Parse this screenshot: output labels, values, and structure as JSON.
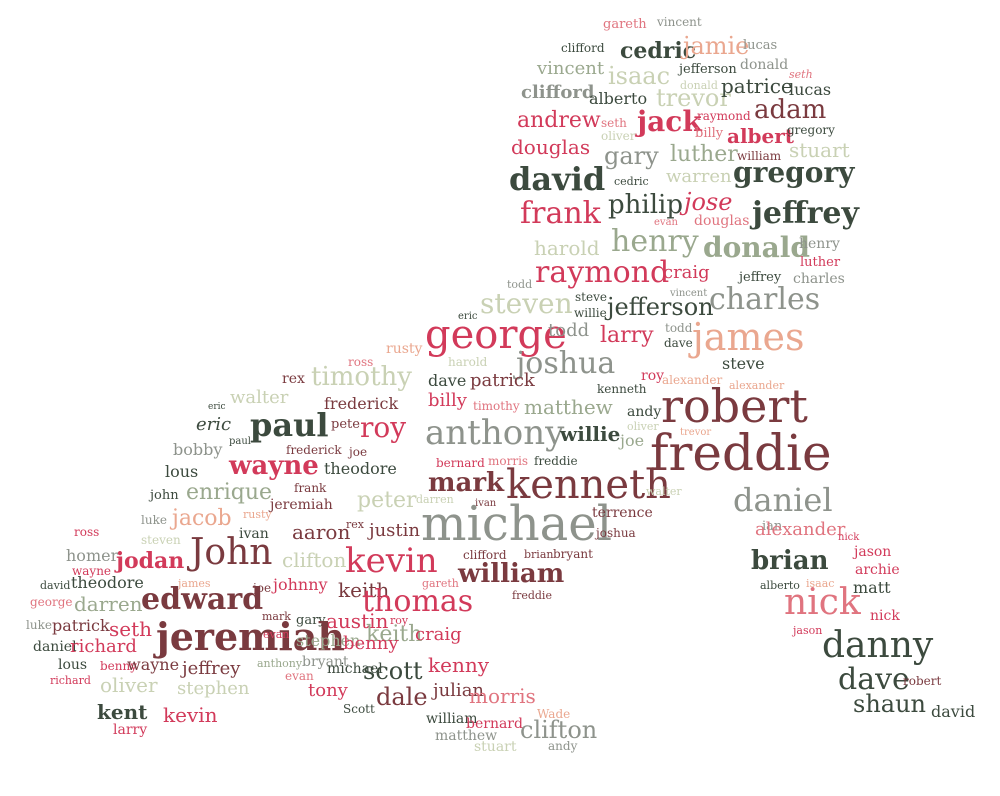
{
  "palette": {
    "dark_green": "#3c4a3e",
    "maroon": "#7a3a3f",
    "crimson": "#d23a5a",
    "rose": "#e0747f",
    "peach": "#eaa78f",
    "sage": "#9aa88e",
    "pale_sage": "#c9d1b4",
    "grey": "#8e938c"
  },
  "words": [
    {
      "text": "gareth",
      "color": "rose"
    },
    {
      "text": "vincent",
      "color": "grey"
    },
    {
      "text": "clifford",
      "color": "dark_green"
    },
    {
      "text": "cedric",
      "color": "dark_green"
    },
    {
      "text": "jamie",
      "color": "peach"
    },
    {
      "text": "lucas",
      "color": "grey"
    },
    {
      "text": "vincent",
      "color": "sage"
    },
    {
      "text": "isaac",
      "color": "pale_sage"
    },
    {
      "text": "jefferson",
      "color": "dark_green"
    },
    {
      "text": "donald",
      "color": "grey"
    },
    {
      "text": "clifford",
      "color": "grey"
    },
    {
      "text": "alberto",
      "color": "dark_green"
    },
    {
      "text": "trevor",
      "color": "pale_sage"
    },
    {
      "text": "donald",
      "color": "pale_sage"
    },
    {
      "text": "patrice",
      "color": "dark_green"
    },
    {
      "text": "seth",
      "color": "rose"
    },
    {
      "text": "lucas",
      "color": "dark_green"
    },
    {
      "text": "andrew",
      "color": "crimson"
    },
    {
      "text": "seth",
      "color": "rose"
    },
    {
      "text": "jack",
      "color": "crimson"
    },
    {
      "text": "raymond",
      "color": "crimson"
    },
    {
      "text": "adam",
      "color": "maroon"
    },
    {
      "text": "oliver",
      "color": "pale_sage"
    },
    {
      "text": "billy",
      "color": "rose"
    },
    {
      "text": "albert",
      "color": "crimson"
    },
    {
      "text": "gregory",
      "color": "dark_green"
    },
    {
      "text": "douglas",
      "color": "crimson"
    },
    {
      "text": "gary",
      "color": "grey"
    },
    {
      "text": "luther",
      "color": "sage"
    },
    {
      "text": "william",
      "color": "maroon"
    },
    {
      "text": "stuart",
      "color": "pale_sage"
    },
    {
      "text": "david",
      "color": "dark_green"
    },
    {
      "text": "cedric",
      "color": "dark_green"
    },
    {
      "text": "warren",
      "color": "pale_sage"
    },
    {
      "text": "gregory",
      "color": "dark_green"
    },
    {
      "text": "frank",
      "color": "crimson"
    },
    {
      "text": "philip",
      "color": "dark_green"
    },
    {
      "text": "jose",
      "color": "crimson"
    },
    {
      "text": "evan",
      "color": "rose"
    },
    {
      "text": "douglas",
      "color": "rose"
    },
    {
      "text": "jeffrey",
      "color": "dark_green"
    },
    {
      "text": "harold",
      "color": "pale_sage"
    },
    {
      "text": "henry",
      "color": "sage"
    },
    {
      "text": "donald",
      "color": "sage"
    },
    {
      "text": "henry",
      "color": "grey"
    },
    {
      "text": "luther",
      "color": "crimson"
    },
    {
      "text": "raymond",
      "color": "crimson"
    },
    {
      "text": "craig",
      "color": "crimson"
    },
    {
      "text": "jeffrey",
      "color": "dark_green"
    },
    {
      "text": "charles",
      "color": "grey"
    },
    {
      "text": "todd",
      "color": "grey"
    },
    {
      "text": "vincent",
      "color": "grey"
    },
    {
      "text": "steven",
      "color": "pale_sage"
    },
    {
      "text": "steve",
      "color": "dark_green"
    },
    {
      "text": "jefferson",
      "color": "dark_green"
    },
    {
      "text": "charles",
      "color": "grey"
    },
    {
      "text": "eric",
      "color": "dark_green"
    },
    {
      "text": "willie",
      "color": "dark_green"
    },
    {
      "text": "george",
      "color": "crimson"
    },
    {
      "text": "todd",
      "color": "grey"
    },
    {
      "text": "larry",
      "color": "crimson"
    },
    {
      "text": "todd",
      "color": "grey"
    },
    {
      "text": "dave",
      "color": "dark_green"
    },
    {
      "text": "james",
      "color": "peach"
    },
    {
      "text": "ross",
      "color": "rose"
    },
    {
      "text": "rusty",
      "color": "peach"
    },
    {
      "text": "harold",
      "color": "pale_sage"
    },
    {
      "text": "joshua",
      "color": "grey"
    },
    {
      "text": "steve",
      "color": "dark_green"
    },
    {
      "text": "rex",
      "color": "maroon"
    },
    {
      "text": "timothy",
      "color": "pale_sage"
    },
    {
      "text": "dave",
      "color": "dark_green"
    },
    {
      "text": "patrick",
      "color": "maroon"
    },
    {
      "text": "roy",
      "color": "crimson"
    },
    {
      "text": "alexander",
      "color": "peach"
    },
    {
      "text": "alexander",
      "color": "peach"
    },
    {
      "text": "walter",
      "color": "pale_sage"
    },
    {
      "text": "kenneth",
      "color": "dark_green"
    },
    {
      "text": "eric",
      "color": "dark_green"
    },
    {
      "text": "frederick",
      "color": "maroon"
    },
    {
      "text": "billy",
      "color": "crimson"
    },
    {
      "text": "timothy",
      "color": "rose"
    },
    {
      "text": "matthew",
      "color": "sage"
    },
    {
      "text": "andy",
      "color": "dark_green"
    },
    {
      "text": "robert",
      "color": "maroon"
    },
    {
      "text": "eric",
      "color": "dark_green"
    },
    {
      "text": "paul",
      "color": "dark_green"
    },
    {
      "text": "pete",
      "color": "maroon"
    },
    {
      "text": "roy",
      "color": "crimson"
    },
    {
      "text": "anthony",
      "color": "grey"
    },
    {
      "text": "willie",
      "color": "dark_green"
    },
    {
      "text": "oliver",
      "color": "pale_sage"
    },
    {
      "text": "trevor",
      "color": "peach"
    },
    {
      "text": "paul",
      "color": "dark_green"
    },
    {
      "text": "bobby",
      "color": "grey"
    },
    {
      "text": "frederick",
      "color": "maroon"
    },
    {
      "text": "joe",
      "color": "maroon"
    },
    {
      "text": "joe",
      "color": "sage"
    },
    {
      "text": "wayne",
      "color": "crimson"
    },
    {
      "text": "theodore",
      "color": "dark_green"
    },
    {
      "text": "bernard",
      "color": "crimson"
    },
    {
      "text": "morris",
      "color": "rose"
    },
    {
      "text": "freddie",
      "color": "dark_green"
    },
    {
      "text": "freddie",
      "color": "maroon"
    },
    {
      "text": "lous",
      "color": "dark_green"
    },
    {
      "text": "frank",
      "color": "maroon"
    },
    {
      "text": "mark",
      "color": "maroon"
    },
    {
      "text": "kenneth",
      "color": "maroon"
    },
    {
      "text": "walter",
      "color": "pale_sage"
    },
    {
      "text": "john",
      "color": "dark_green"
    },
    {
      "text": "enrique",
      "color": "sage"
    },
    {
      "text": "jeremiah",
      "color": "maroon"
    },
    {
      "text": "peter",
      "color": "pale_sage"
    },
    {
      "text": "darren",
      "color": "pale_sage"
    },
    {
      "text": "ivan",
      "color": "maroon"
    },
    {
      "text": "daniel",
      "color": "grey"
    },
    {
      "text": "luke",
      "color": "grey"
    },
    {
      "text": "jacob",
      "color": "peach"
    },
    {
      "text": "rusty",
      "color": "peach"
    },
    {
      "text": "michael",
      "color": "grey"
    },
    {
      "text": "terrence",
      "color": "maroon"
    },
    {
      "text": "ross",
      "color": "crimson"
    },
    {
      "text": "steven",
      "color": "pale_sage"
    },
    {
      "text": "ivan",
      "color": "dark_green"
    },
    {
      "text": "aaron",
      "color": "maroon"
    },
    {
      "text": "rex",
      "color": "maroon"
    },
    {
      "text": "justin",
      "color": "maroon"
    },
    {
      "text": "joshua",
      "color": "maroon"
    },
    {
      "text": "ian",
      "color": "grey"
    },
    {
      "text": "alexander",
      "color": "rose"
    },
    {
      "text": "nick",
      "color": "crimson"
    },
    {
      "text": "homer",
      "color": "grey"
    },
    {
      "text": "jodan",
      "color": "crimson"
    },
    {
      "text": "John",
      "color": "maroon"
    },
    {
      "text": "clifton",
      "color": "pale_sage"
    },
    {
      "text": "kevin",
      "color": "crimson"
    },
    {
      "text": "clifford",
      "color": "maroon"
    },
    {
      "text": "brian",
      "color": "maroon"
    },
    {
      "text": "bryant",
      "color": "maroon"
    },
    {
      "text": "jason",
      "color": "crimson"
    },
    {
      "text": "brian",
      "color": "dark_green"
    },
    {
      "text": "wayne",
      "color": "crimson"
    },
    {
      "text": "william",
      "color": "maroon"
    },
    {
      "text": "archie",
      "color": "crimson"
    },
    {
      "text": "david",
      "color": "dark_green"
    },
    {
      "text": "theodore",
      "color": "dark_green"
    },
    {
      "text": "james",
      "color": "peach"
    },
    {
      "text": "joe",
      "color": "maroon"
    },
    {
      "text": "johnny",
      "color": "crimson"
    },
    {
      "text": "keith",
      "color": "maroon"
    },
    {
      "text": "gareth",
      "color": "rose"
    },
    {
      "text": "alberto",
      "color": "dark_green"
    },
    {
      "text": "isaac",
      "color": "peach"
    },
    {
      "text": "matt",
      "color": "dark_green"
    },
    {
      "text": "george",
      "color": "rose"
    },
    {
      "text": "darren",
      "color": "sage"
    },
    {
      "text": "edward",
      "color": "maroon"
    },
    {
      "text": "thomas",
      "color": "crimson"
    },
    {
      "text": "freddie",
      "color": "maroon"
    },
    {
      "text": "nick",
      "color": "rose"
    },
    {
      "text": "luke",
      "color": "grey"
    },
    {
      "text": "patrick",
      "color": "maroon"
    },
    {
      "text": "seth",
      "color": "crimson"
    },
    {
      "text": "mark",
      "color": "maroon"
    },
    {
      "text": "gary",
      "color": "dark_green"
    },
    {
      "text": "austin",
      "color": "crimson"
    },
    {
      "text": "roy",
      "color": "crimson"
    },
    {
      "text": "nick",
      "color": "crimson"
    },
    {
      "text": "keith",
      "color": "sage"
    },
    {
      "text": "daniel",
      "color": "dark_green"
    },
    {
      "text": "richard",
      "color": "crimson"
    },
    {
      "text": "jeremiah",
      "color": "maroon"
    },
    {
      "text": "evan",
      "color": "crimson"
    },
    {
      "text": "stephen",
      "color": "sage"
    },
    {
      "text": "craig",
      "color": "crimson"
    },
    {
      "text": "jason",
      "color": "crimson"
    },
    {
      "text": "danny",
      "color": "dark_green"
    },
    {
      "text": "lous",
      "color": "dark_green"
    },
    {
      "text": "benny",
      "color": "crimson"
    },
    {
      "text": "wayne",
      "color": "maroon"
    },
    {
      "text": "anthony",
      "color": "sage"
    },
    {
      "text": "bryant",
      "color": "grey"
    },
    {
      "text": "benny",
      "color": "crimson"
    },
    {
      "text": "richard",
      "color": "crimson"
    },
    {
      "text": "jeffrey",
      "color": "maroon"
    },
    {
      "text": "evan",
      "color": "rose"
    },
    {
      "text": "michael",
      "color": "dark_green"
    },
    {
      "text": "kenny",
      "color": "crimson"
    },
    {
      "text": "oliver",
      "color": "pale_sage"
    },
    {
      "text": "scott",
      "color": "dark_green"
    },
    {
      "text": "dave",
      "color": "dark_green"
    },
    {
      "text": "robert",
      "color": "maroon"
    },
    {
      "text": "stephen",
      "color": "pale_sage"
    },
    {
      "text": "tony",
      "color": "crimson"
    },
    {
      "text": "dale",
      "color": "maroon"
    },
    {
      "text": "julian",
      "color": "maroon"
    },
    {
      "text": "morris",
      "color": "rose"
    },
    {
      "text": "shaun",
      "color": "dark_green"
    },
    {
      "text": "kent",
      "color": "dark_green"
    },
    {
      "text": "kevin",
      "color": "crimson"
    },
    {
      "text": "Scott",
      "color": "dark_green"
    },
    {
      "text": "Wade",
      "color": "peach"
    },
    {
      "text": "david",
      "color": "dark_green"
    },
    {
      "text": "william",
      "color": "dark_green"
    },
    {
      "text": "bernard",
      "color": "crimson"
    },
    {
      "text": "clifton",
      "color": "grey"
    },
    {
      "text": "larry",
      "color": "crimson"
    },
    {
      "text": "matthew",
      "color": "grey"
    },
    {
      "text": "stuart",
      "color": "pale_sage"
    },
    {
      "text": "andy",
      "color": "grey"
    }
  ]
}
